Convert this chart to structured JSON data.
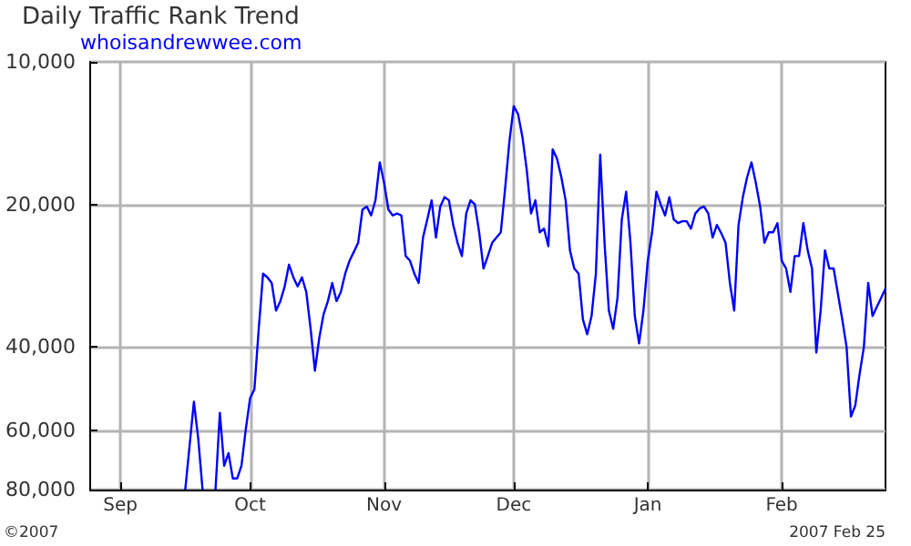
{
  "chart_data": {
    "type": "line",
    "title": "Daily Traffic Rank Trend",
    "subtitle": "whoisandrewwee.com",
    "annotations": [
      "©2007",
      "2007 Feb 25"
    ],
    "x": [
      "2006-09-16",
      "2006-09-18",
      "2006-09-19",
      "2006-09-20",
      "2006-09-21",
      "2006-09-23",
      "2006-09-24",
      "2006-09-25",
      "2006-09-26",
      "2006-09-27",
      "2006-09-28",
      "2006-09-29",
      "2006-09-30",
      "2006-10-01",
      "2006-10-02",
      "2006-10-03",
      "2006-10-04",
      "2006-10-05",
      "2006-10-06",
      "2006-10-07",
      "2006-10-08",
      "2006-10-09",
      "2006-10-10",
      "2006-10-11",
      "2006-10-12",
      "2006-10-13",
      "2006-10-14",
      "2006-10-15",
      "2006-10-16",
      "2006-10-17",
      "2006-10-18",
      "2006-10-19",
      "2006-10-20",
      "2006-10-21",
      "2006-10-22",
      "2006-10-23",
      "2006-10-24",
      "2006-10-25",
      "2006-10-26",
      "2006-10-27",
      "2006-10-28",
      "2006-10-29",
      "2006-10-30",
      "2006-10-31",
      "2006-11-01",
      "2006-11-02",
      "2006-11-03",
      "2006-11-04",
      "2006-11-05",
      "2006-11-06",
      "2006-11-07",
      "2006-11-08",
      "2006-11-09",
      "2006-11-10",
      "2006-11-11",
      "2006-11-12",
      "2006-11-13",
      "2006-11-14",
      "2006-11-15",
      "2006-11-16",
      "2006-11-17",
      "2006-11-18",
      "2006-11-19",
      "2006-11-20",
      "2006-11-21",
      "2006-11-22",
      "2006-11-23",
      "2006-11-24",
      "2006-11-25",
      "2006-11-26",
      "2006-11-28",
      "2006-11-29",
      "2006-11-30",
      "2006-12-01",
      "2006-12-02",
      "2006-12-03",
      "2006-12-04",
      "2006-12-05",
      "2006-12-06",
      "2006-12-07",
      "2006-12-08",
      "2006-12-09",
      "2006-12-10",
      "2006-12-11",
      "2006-12-12",
      "2006-12-13",
      "2006-12-14",
      "2006-12-15",
      "2006-12-16",
      "2006-12-17",
      "2006-12-18",
      "2006-12-19",
      "2006-12-20",
      "2006-12-21",
      "2006-12-22",
      "2006-12-23",
      "2006-12-24",
      "2006-12-25",
      "2006-12-26",
      "2006-12-27",
      "2006-12-28",
      "2006-12-29",
      "2006-12-30",
      "2006-12-31",
      "2007-01-01",
      "2007-01-02",
      "2007-01-03",
      "2007-01-04",
      "2007-01-05",
      "2007-01-06",
      "2007-01-07",
      "2007-01-08",
      "2007-01-09",
      "2007-01-10",
      "2007-01-11",
      "2007-01-12",
      "2007-01-13",
      "2007-01-14",
      "2007-01-15",
      "2007-01-16",
      "2007-01-17",
      "2007-01-18",
      "2007-01-19",
      "2007-01-20",
      "2007-01-21",
      "2007-01-22",
      "2007-01-23",
      "2007-01-24",
      "2007-01-25",
      "2007-01-26",
      "2007-01-27",
      "2007-01-28",
      "2007-01-29",
      "2007-01-30",
      "2007-01-31",
      "2007-02-01",
      "2007-02-02",
      "2007-02-03",
      "2007-02-04",
      "2007-02-05",
      "2007-02-06",
      "2007-02-07",
      "2007-02-08",
      "2007-02-09",
      "2007-02-10",
      "2007-02-11",
      "2007-02-12",
      "2007-02-13",
      "2007-02-15",
      "2007-02-16",
      "2007-02-17",
      "2007-02-18",
      "2007-02-19",
      "2007-02-20",
      "2007-02-21",
      "2007-02-22",
      "2007-02-23",
      "2007-02-24",
      "2007-02-25"
    ],
    "series": [
      {
        "color": "#0000ff",
        "values": [
          80000,
          52200,
          62400,
          80000,
          null,
          80000,
          55100,
          71300,
          67000,
          75800,
          75800,
          71300,
          59700,
          51300,
          49100,
          36600,
          28000,
          28500,
          29300,
          33500,
          32000,
          29800,
          26800,
          28500,
          29800,
          28500,
          30600,
          36600,
          44900,
          38300,
          34100,
          32000,
          29300,
          32000,
          30600,
          28000,
          26300,
          25200,
          24100,
          20500,
          20200,
          21100,
          19600,
          16300,
          18000,
          20500,
          21100,
          20900,
          21100,
          25700,
          26300,
          28000,
          29300,
          23500,
          21500,
          19600,
          23500,
          20200,
          19300,
          19600,
          22100,
          24100,
          25700,
          20900,
          19600,
          20000,
          22900,
          27300,
          25700,
          24100,
          22900,
          18500,
          14700,
          12400,
          12900,
          14400,
          16900,
          20900,
          19600,
          22900,
          22500,
          24500,
          15300,
          16000,
          17500,
          19600,
          25000,
          27300,
          28000,
          35000,
          37600,
          34400,
          28000,
          15700,
          24100,
          33500,
          36600,
          31500,
          21500,
          18800,
          24100,
          34400,
          39300,
          33500,
          26300,
          22900,
          18800,
          20000,
          21100,
          19300,
          21500,
          21900,
          21700,
          21700,
          22500,
          20900,
          20400,
          20200,
          20900,
          23500,
          22100,
          23000,
          24100,
          29300,
          33500,
          22100,
          19300,
          17500,
          16300,
          18000,
          20200,
          24100,
          22900,
          22900,
          21900,
          26300,
          27300,
          30600,
          25700,
          25700,
          21900,
          25000,
          27300,
          41100,
          33500,
          25000,
          27300,
          27300,
          35000,
          40000,
          56100,
          53200,
          45700,
          40000,
          29300,
          34400,
          32900,
          31500,
          30100
        ]
      }
    ],
    "xlim": [
      "2006-08-25",
      "2007-02-25"
    ],
    "xticks": [
      {
        "value": "2006-09-01",
        "label": "Sep"
      },
      {
        "value": "2006-10-01",
        "label": "Oct"
      },
      {
        "value": "2006-11-01",
        "label": "Nov"
      },
      {
        "value": "2006-12-01",
        "label": "Dec"
      },
      {
        "value": "2007-01-01",
        "label": "Jan"
      },
      {
        "value": "2007-02-01",
        "label": "Feb"
      }
    ],
    "ylim": [
      80000,
      10000
    ],
    "yticks": [
      {
        "value": 10000,
        "label": "10,000"
      },
      {
        "value": 20000,
        "label": "20,000"
      },
      {
        "value": 40000,
        "label": "40,000"
      },
      {
        "value": 60000,
        "label": "60,000"
      },
      {
        "value": 80000,
        "label": "80,000"
      }
    ],
    "log": "y",
    "grid": true,
    "marker": "none",
    "line_style": "solid"
  }
}
